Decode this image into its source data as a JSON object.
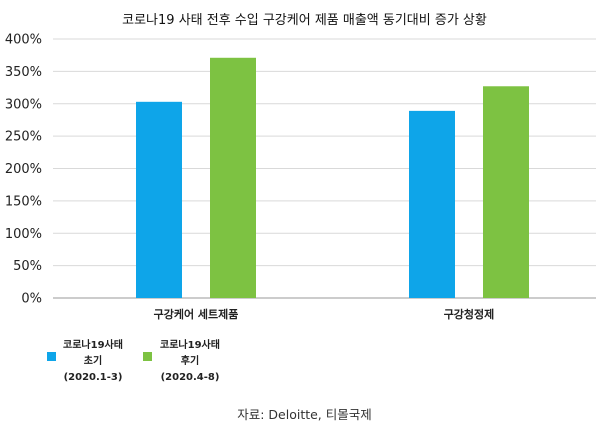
{
  "chart_data": {
    "type": "bar",
    "title": "코로나19 사태 전후 수입 구강케어 제품 매출액 동기대비 증가 상황",
    "categories": [
      "구강케어 세트제품",
      "구강청정제"
    ],
    "series": [
      {
        "name": "코로나19사태 초기 (2020.1-3)",
        "name_lines": [
          "코로나19사태",
          "초기",
          "(2020.1-3)"
        ],
        "color": "#0ea5e9",
        "values": [
          303,
          289
        ]
      },
      {
        "name": "코로나19사태 후기 (2020.4-8)",
        "name_lines": [
          "코로나19사태",
          "후기",
          "(2020.4-8)"
        ],
        "color": "#7dc242",
        "values": [
          371,
          327
        ]
      }
    ],
    "ylim": [
      0,
      400
    ],
    "yticks": [
      "0%",
      "50%",
      "100%",
      "150%",
      "200%",
      "250%",
      "300%",
      "350%",
      "400%"
    ],
    "grid": true,
    "legend_position": "bottom-left",
    "xlabel": "",
    "ylabel": ""
  },
  "source_note": "자료: Deloitte, 티몰국제"
}
